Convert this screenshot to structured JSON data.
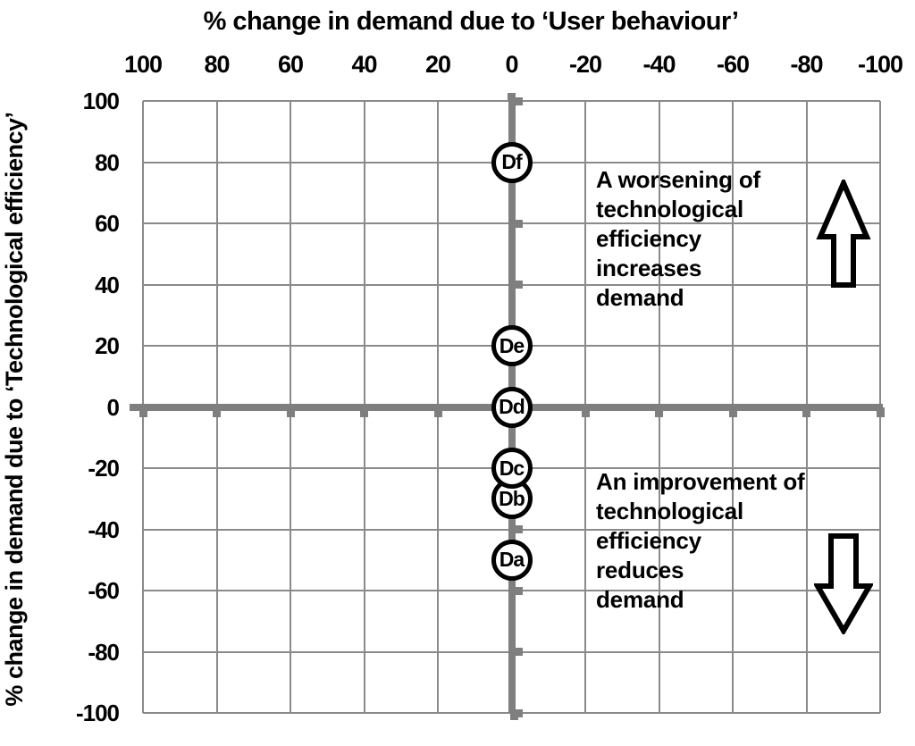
{
  "chart_data": {
    "type": "scatter",
    "title": "% change in demand due to ‘User behaviour’",
    "x_axis": {
      "title": "% change in demand due to ‘User behaviour’",
      "position": "top",
      "reversed": true,
      "min": -100,
      "max": 100,
      "ticks": [
        100,
        80,
        60,
        40,
        20,
        0,
        -20,
        -40,
        -60,
        -80,
        -100
      ]
    },
    "y_axis": {
      "title": "% change in demand due to ‘Technological efficiency’",
      "min": -100,
      "max": 100,
      "ticks": [
        100,
        80,
        60,
        40,
        20,
        0,
        -20,
        -40,
        -60,
        -80,
        -100
      ]
    },
    "grid": true,
    "legend": false,
    "points": [
      {
        "label": "Da",
        "x": 0,
        "y": -50
      },
      {
        "label": "Db",
        "x": 0,
        "y": -30
      },
      {
        "label": "Dc",
        "x": 0,
        "y": -20
      },
      {
        "label": "Dd",
        "x": 0,
        "y": 0
      },
      {
        "label": "De",
        "x": 0,
        "y": 20
      },
      {
        "label": "Df",
        "x": 0,
        "y": 80
      }
    ],
    "annotations": [
      {
        "region": "upper-right",
        "arrow": "up",
        "text": "A worsening of\ntechnological\nefficiency\nincreases\ndemand"
      },
      {
        "region": "lower-right",
        "arrow": "down",
        "text": "An improvement of\ntechnological\nefficiency\nreduces\ndemand"
      }
    ],
    "colors": {
      "background": "#ffffff",
      "grid": "#8a8a8a",
      "axis": "#7f7f7f",
      "point_stroke": "#000000",
      "point_fill": "#ffffff",
      "text": "#000000"
    }
  }
}
